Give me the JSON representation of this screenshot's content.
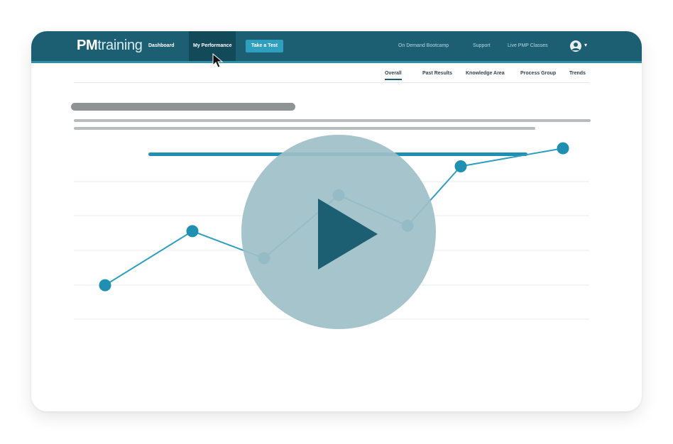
{
  "header": {
    "logo_bold": "PM",
    "logo_light": "training",
    "nav": [
      {
        "label": "Dashboard"
      },
      {
        "label": "My Performance"
      },
      {
        "label": "Take a Test"
      }
    ],
    "right_nav": [
      {
        "label": "On Demand Bootcamp"
      },
      {
        "label": "Support"
      },
      {
        "label": "Live PMP Classes"
      }
    ]
  },
  "subtabs": [
    {
      "label": "Overall"
    },
    {
      "label": "Past Results"
    },
    {
      "label": "Knowledge Area"
    },
    {
      "label": "Process Group"
    },
    {
      "label": "Trends"
    }
  ],
  "colors": {
    "navbar": "#1c5f73",
    "accent": "#2f9fc0",
    "line": "#2f9fc0",
    "play_circle": "#9ebfc8",
    "play_triangle": "#1c5f73"
  },
  "icons": {
    "avatar": "user-avatar-icon",
    "caret": "chevron-down-icon",
    "cursor": "mouse-pointer-icon",
    "play": "play-icon"
  },
  "chart_data": {
    "type": "line",
    "series": [
      {
        "values": [
          22,
          52,
          37,
          72,
          55,
          88,
          98
        ]
      }
    ],
    "ylim": [
      0,
      100
    ],
    "grid": true
  }
}
